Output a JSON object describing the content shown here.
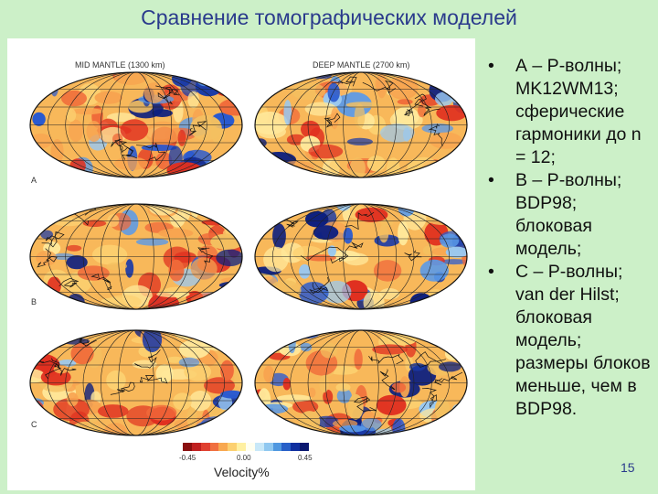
{
  "slide": {
    "title": "Сравнение томографических моделей",
    "page_number": "15"
  },
  "figure": {
    "col_heads": [
      "MID MANTLE (1300 km)",
      "DEEP MANTLE (2700 km)"
    ],
    "row_labels": [
      "A",
      "B",
      "C"
    ],
    "colorbar": {
      "ticks": [
        "-0.45",
        "0.00",
        "0.45"
      ],
      "label": "Velocity%",
      "colors": [
        "#8a1010",
        "#c02020",
        "#e04030",
        "#f07040",
        "#f8a850",
        "#fcd070",
        "#fff0a0",
        "#fffff0",
        "#c8e8f8",
        "#90c8f0",
        "#5098e0",
        "#2860c8",
        "#1030a0",
        "#0a1870"
      ]
    }
  },
  "bullets": [
    "А – P-волны; MK12WM13; сферические гармоники до n = 12;",
    "B – P-волны; BDP98; блоковая модель;",
    "C – P-волны; van der Hilst; блоковая модель; размеры блоков меньше, чем в BDP98."
  ]
}
